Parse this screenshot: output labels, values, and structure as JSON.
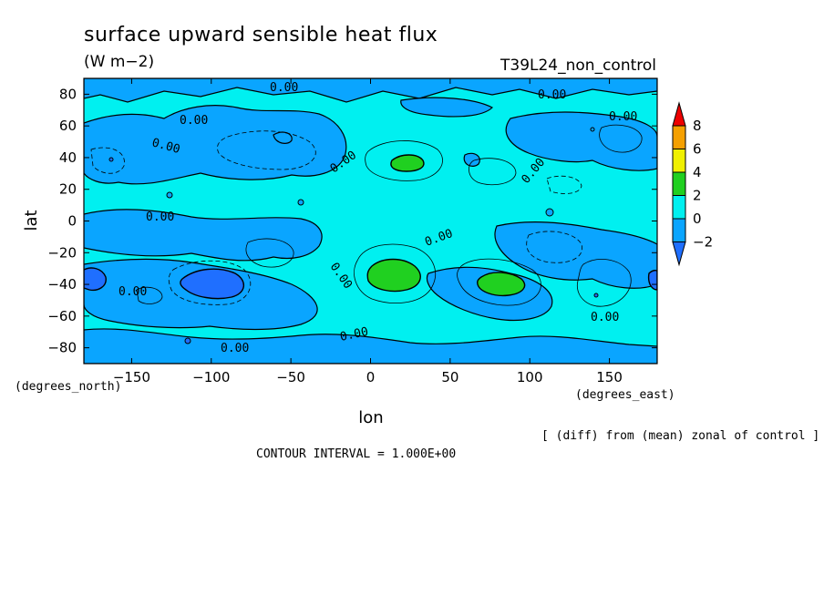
{
  "chart_data": {
    "type": "contour",
    "title": "surface upward sensible heat flux",
    "units": "(W m−2)",
    "run_label": "T39L24_non_control",
    "xlabel": "lon",
    "ylabel": "lat",
    "x_unit_label": "(degrees_east)",
    "y_unit_label": "(degrees_north)",
    "xlim": [
      -180,
      180
    ],
    "ylim": [
      -90,
      90
    ],
    "x_ticks": [
      -150,
      -100,
      -50,
      0,
      50,
      100,
      150
    ],
    "y_ticks": [
      80,
      60,
      40,
      20,
      0,
      -20,
      -40,
      -60,
      -80
    ],
    "contour_interval_text": "CONTOUR INTERVAL = 1.000E+00",
    "note": "[ (diff) from (mean) zonal of control ]",
    "contour_labels": [
      "0.00",
      "0.00",
      "0.00",
      "0.00",
      "0.00",
      "0.00",
      "0.00",
      "0.00",
      "0.00",
      "0.00",
      "0.00",
      "0.00",
      "0.00",
      "0.00"
    ],
    "colorbar": {
      "levels": [
        -2,
        0,
        2,
        4,
        6,
        8
      ],
      "colors": [
        "#1f6fff",
        "#0aa5ff",
        "#00f0f0",
        "#20d020",
        "#f0f000",
        "#f5a000",
        "#ee0000"
      ]
    },
    "features": [
      {
        "lon": 15,
        "lat": -33,
        "value": 3,
        "desc": "positive anomaly Africa"
      },
      {
        "lon": 78,
        "lat": -38,
        "value": 3,
        "desc": "positive anomaly Indian Ocean"
      },
      {
        "lon": 22,
        "lat": 36,
        "value": 2,
        "desc": "positive anomaly Mediterranean"
      },
      {
        "lon": -110,
        "lat": -38,
        "value": -2,
        "desc": "negative anomaly South Pacific"
      },
      {
        "lon": -175,
        "lat": -35,
        "value": -2,
        "desc": "negative anomaly dateline"
      }
    ]
  }
}
